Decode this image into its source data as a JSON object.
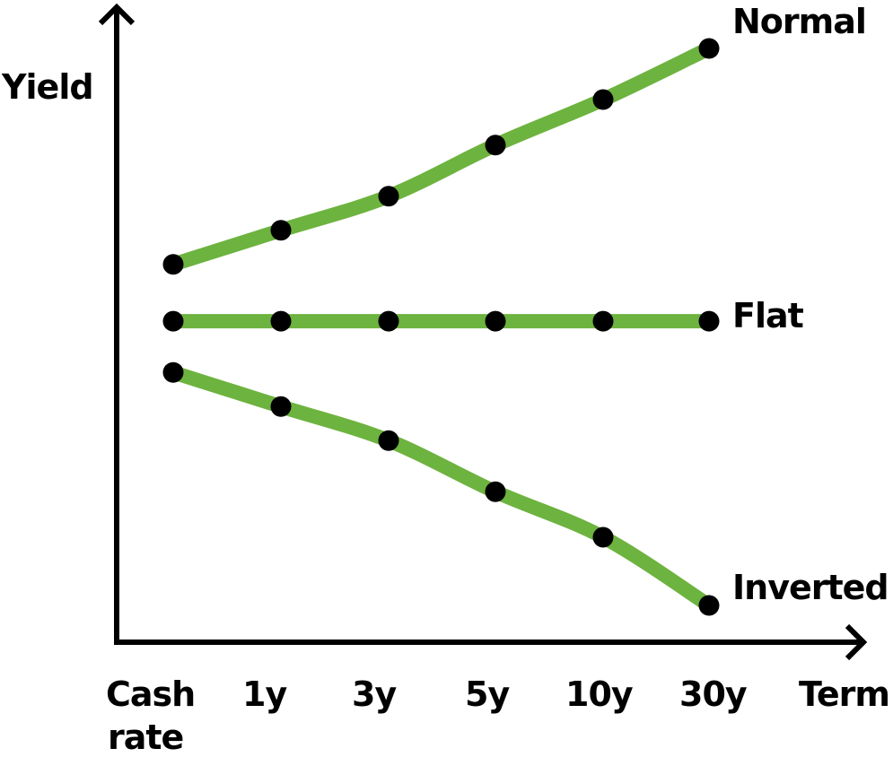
{
  "chart_data": {
    "type": "line",
    "title": "",
    "xlabel": "Term",
    "ylabel": "Yield",
    "categories": [
      "Cash rate",
      "1y",
      "3y",
      "5y",
      "10y",
      "30y"
    ],
    "grid": false,
    "legend_position": "inline-right",
    "y_units": "relative (no scale shown)",
    "ylim": [
      0,
      100
    ],
    "series": [
      {
        "name": "Normal",
        "values": [
          62,
          68,
          74,
          83,
          91,
          100
        ]
      },
      {
        "name": "Flat",
        "values": [
          52,
          52,
          52,
          52,
          52,
          52
        ]
      },
      {
        "name": "Inverted",
        "values": [
          43,
          37,
          31,
          22,
          14,
          2
        ]
      }
    ],
    "colors": {
      "line": "#6db33f",
      "marker": "#000000",
      "axis": "#000000"
    }
  },
  "labels": {
    "y_axis": "Yield",
    "x_axis": "Term",
    "ticks": [
      "Cash",
      "rate",
      "1y",
      "3y",
      "5y",
      "10y",
      "30y"
    ],
    "series": [
      "Normal",
      "Flat",
      "Inverted"
    ]
  }
}
